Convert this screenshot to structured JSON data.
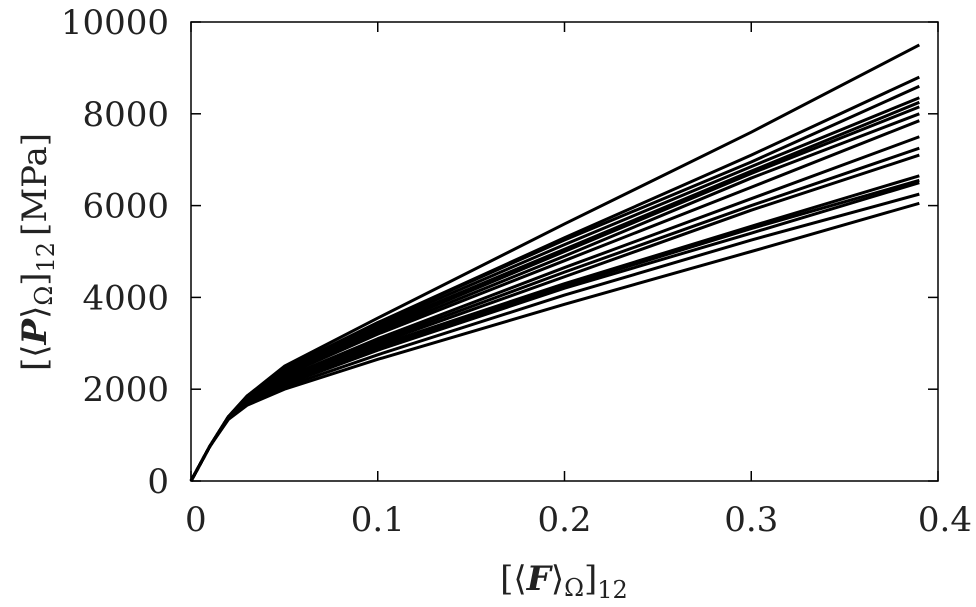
{
  "chart_data": {
    "type": "line",
    "xlabel": "[⟨F⟩Ω]12",
    "ylabel": "[⟨P⟩Ω]12 [MPa]",
    "xlabel_parts": {
      "open": "[⟨",
      "var": "F",
      "close": "⟩",
      "omega": "Ω",
      "bracket": "]",
      "sub": "12"
    },
    "ylabel_parts": {
      "open": "[⟨",
      "var": "P",
      "close": "⟩",
      "omega": "Ω",
      "bracket": "]",
      "sub": "12",
      "unit": "[MPa]"
    },
    "xlim": [
      0,
      0.4
    ],
    "ylim": [
      0,
      10000
    ],
    "x_ticks": [
      "0",
      "0.1",
      "0.2",
      "0.3",
      "0.4"
    ],
    "y_ticks": [
      "0",
      "2000",
      "4000",
      "6000",
      "8000",
      "10000"
    ],
    "grid": false,
    "legend": "none",
    "line_color": "#000000",
    "x": [
      0,
      0.01,
      0.02,
      0.03,
      0.05,
      0.1,
      0.2,
      0.3,
      0.39
    ],
    "series": [
      {
        "values": [
          0,
          750,
          1400,
          1850,
          2500,
          3550,
          5600,
          7600,
          9500
        ]
      },
      {
        "values": [
          0,
          750,
          1400,
          1850,
          2450,
          3450,
          5300,
          7100,
          8800
        ]
      },
      {
        "values": [
          0,
          750,
          1400,
          1850,
          2450,
          3450,
          5250,
          6950,
          8600
        ]
      },
      {
        "values": [
          0,
          750,
          1400,
          1820,
          2400,
          3400,
          5150,
          6850,
          8350
        ]
      },
      {
        "values": [
          0,
          750,
          1400,
          1820,
          2400,
          3350,
          5050,
          6750,
          8250
        ]
      },
      {
        "values": [
          0,
          750,
          1400,
          1800,
          2350,
          3300,
          5000,
          6700,
          8150
        ]
      },
      {
        "values": [
          0,
          750,
          1400,
          1800,
          2350,
          3250,
          4900,
          6600,
          8000
        ]
      },
      {
        "values": [
          0,
          750,
          1380,
          1780,
          2300,
          3200,
          4800,
          6400,
          7850
        ]
      },
      {
        "values": [
          0,
          750,
          1380,
          1750,
          2250,
          3100,
          4650,
          6150,
          7500
        ]
      },
      {
        "values": [
          0,
          750,
          1380,
          1750,
          2200,
          3050,
          4550,
          6000,
          7250
        ]
      },
      {
        "values": [
          0,
          750,
          1370,
          1720,
          2200,
          3000,
          4450,
          5900,
          7100
        ]
      },
      {
        "values": [
          0,
          750,
          1370,
          1720,
          2150,
          2950,
          4300,
          5550,
          6650
        ]
      },
      {
        "values": [
          0,
          750,
          1360,
          1700,
          2150,
          2900,
          4250,
          5500,
          6550
        ]
      },
      {
        "values": [
          0,
          750,
          1360,
          1700,
          2100,
          2850,
          4200,
          5400,
          6500
        ]
      },
      {
        "values": [
          0,
          750,
          1350,
          1680,
          2050,
          2750,
          4050,
          5250,
          6250
        ]
      },
      {
        "values": [
          0,
          750,
          1340,
          1650,
          2000,
          2650,
          3850,
          5000,
          6050
        ]
      }
    ]
  }
}
